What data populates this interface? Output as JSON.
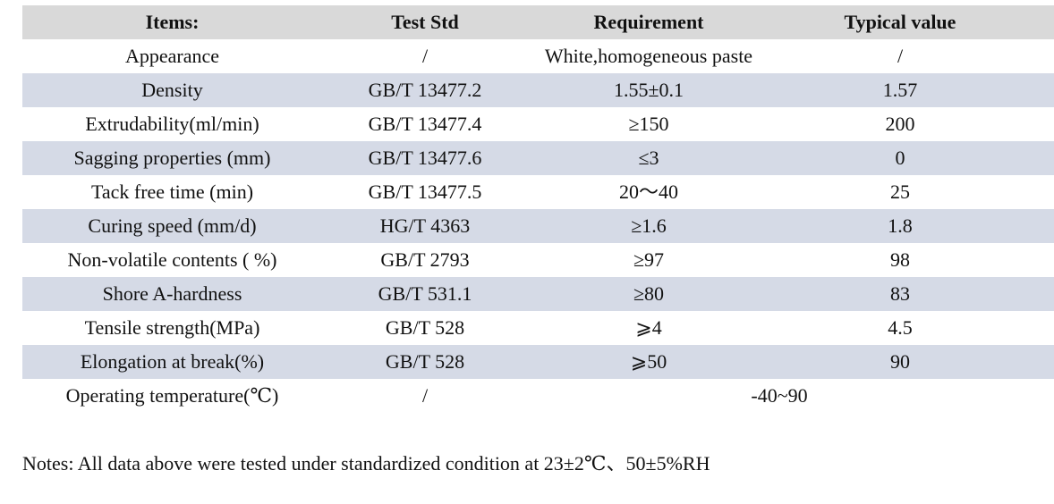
{
  "table": {
    "headers": [
      "Items:",
      "Test Std",
      "Requirement",
      "Typical value"
    ],
    "rows": [
      {
        "item": "Appearance",
        "std": "/",
        "req": "White,homogeneous paste",
        "typical": "/"
      },
      {
        "item": "Density",
        "std": "GB/T 13477.2",
        "req": "1.55±0.1",
        "typical": "1.57"
      },
      {
        "item": "Extrudability(ml/min)",
        "std": "GB/T 13477.4",
        "req": "≥150",
        "typical": "200"
      },
      {
        "item": "Sagging properties (mm)",
        "std": "GB/T 13477.6",
        "req": "≤3",
        "typical": "0"
      },
      {
        "item": "Tack free time (min)",
        "std": "GB/T 13477.5",
        "req": "20～40",
        "typical": "25"
      },
      {
        "item": "Curing speed (mm/d)",
        "std": "HG/T 4363",
        "req": "≥1.6",
        "typical": "1.8"
      },
      {
        "item": "Non-volatile contents ( %)",
        "std": "GB/T 2793",
        "req": "≥97",
        "typical": "98"
      },
      {
        "item": "Shore A-hardness",
        "std": "GB/T 531.1",
        "req": "≥80",
        "typical": "83"
      },
      {
        "item": "Tensile strength(MPa)",
        "std": "GB/T 528",
        "req": "⩾4",
        "typical": "4.5"
      },
      {
        "item": "Elongation at break(%)",
        "std": "GB/T 528",
        "req": "⩾50",
        "typical": "90"
      },
      {
        "item": "Operating temperature(℃)",
        "std": "/",
        "req": "-40~90",
        "typical": null,
        "merged": true
      }
    ],
    "colors": {
      "header_bg": "#d9d9d9",
      "stripe_bg": "#d5dae6"
    }
  },
  "notes": "Notes: All data above were tested under standardized condition at 23±2℃、50±5%RH"
}
